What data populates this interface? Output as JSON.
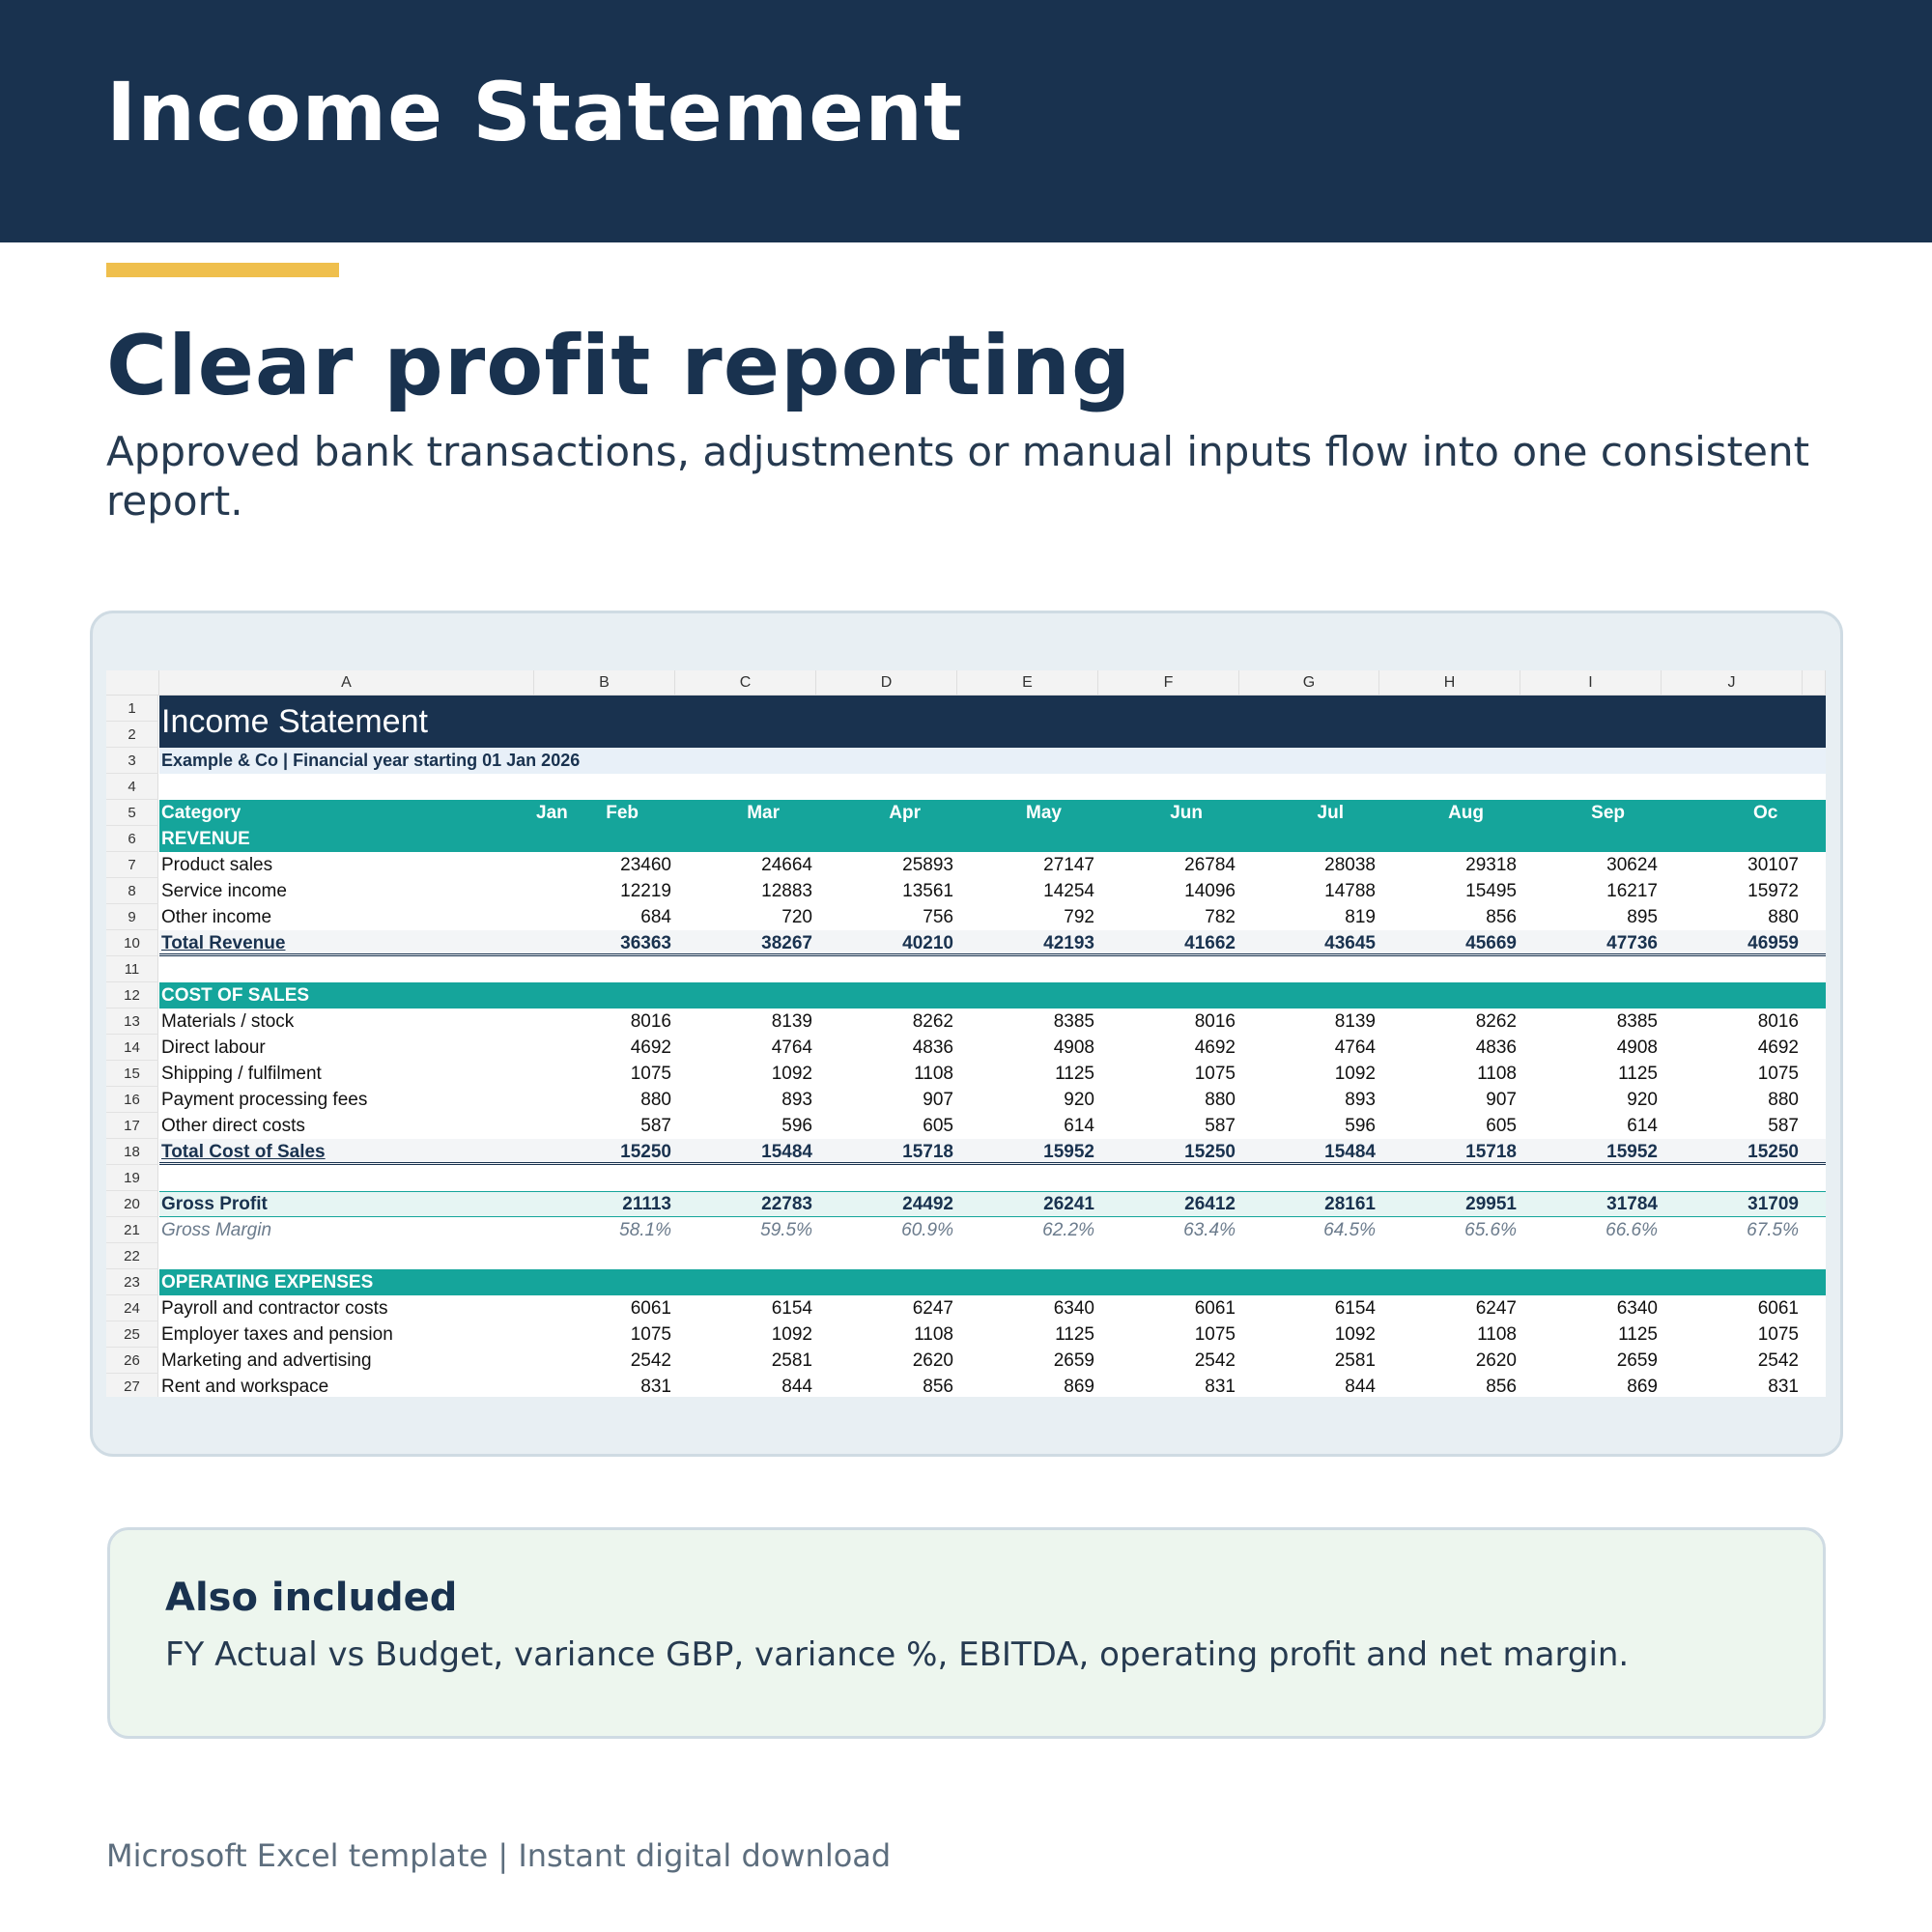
{
  "hero": {
    "title": "Income Statement"
  },
  "headline": "Clear profit reporting",
  "subhead": "Approved bank transactions, adjustments or manual inputs flow into one consistent report.",
  "colors": {
    "navy": "#19324f",
    "accent": "#efbf4d",
    "teal": "#15a59b"
  },
  "sheet": {
    "columns": [
      "A",
      "B",
      "C",
      "D",
      "E",
      "F",
      "G",
      "H",
      "I",
      "J"
    ],
    "row_numbers": [
      "1",
      "2",
      "3",
      "4",
      "5",
      "6",
      "7",
      "8",
      "9",
      "10",
      "11",
      "12",
      "13",
      "14",
      "15",
      "16",
      "17",
      "18",
      "19",
      "20",
      "21",
      "22",
      "23",
      "24",
      "25",
      "26",
      "27"
    ],
    "title": "Income Statement",
    "subtitle": "Example & Co | Financial year starting 01 Jan 2026",
    "header": {
      "category": "Category",
      "months": [
        "Jan",
        "Feb",
        "Mar",
        "Apr",
        "May",
        "Jun",
        "Jul",
        "Aug",
        "Sep",
        "Oc"
      ]
    },
    "sections": {
      "revenue": "REVENUE",
      "cost_of_sales": "COST OF SALES",
      "operating_expenses": "OPERATING EXPENSES"
    },
    "rows": [
      {
        "label": "Product sales",
        "values": [
          "23460",
          "24664",
          "25893",
          "27147",
          "26784",
          "28038",
          "29318",
          "30624",
          "30107"
        ]
      },
      {
        "label": "Service income",
        "values": [
          "12219",
          "12883",
          "13561",
          "14254",
          "14096",
          "14788",
          "15495",
          "16217",
          "15972"
        ]
      },
      {
        "label": "Other income",
        "values": [
          "684",
          "720",
          "756",
          "792",
          "782",
          "819",
          "856",
          "895",
          "880"
        ]
      },
      {
        "label": "Total Revenue",
        "values": [
          "36363",
          "38267",
          "40210",
          "42193",
          "41662",
          "43645",
          "45669",
          "47736",
          "46959"
        ]
      },
      {
        "label": "Materials / stock",
        "values": [
          "8016",
          "8139",
          "8262",
          "8385",
          "8016",
          "8139",
          "8262",
          "8385",
          "8016"
        ]
      },
      {
        "label": "Direct labour",
        "values": [
          "4692",
          "4764",
          "4836",
          "4908",
          "4692",
          "4764",
          "4836",
          "4908",
          "4692"
        ]
      },
      {
        "label": "Shipping / fulfilment",
        "values": [
          "1075",
          "1092",
          "1108",
          "1125",
          "1075",
          "1092",
          "1108",
          "1125",
          "1075"
        ]
      },
      {
        "label": "Payment processing fees",
        "values": [
          "880",
          "893",
          "907",
          "920",
          "880",
          "893",
          "907",
          "920",
          "880"
        ]
      },
      {
        "label": "Other direct costs",
        "values": [
          "587",
          "596",
          "605",
          "614",
          "587",
          "596",
          "605",
          "614",
          "587"
        ]
      },
      {
        "label": "Total Cost of Sales",
        "values": [
          "15250",
          "15484",
          "15718",
          "15952",
          "15250",
          "15484",
          "15718",
          "15952",
          "15250"
        ]
      },
      {
        "label": "Gross Profit",
        "values": [
          "21113",
          "22783",
          "24492",
          "26241",
          "26412",
          "28161",
          "29951",
          "31784",
          "31709"
        ]
      },
      {
        "label": "Gross Margin",
        "values": [
          "58.1%",
          "59.5%",
          "60.9%",
          "62.2%",
          "63.4%",
          "64.5%",
          "65.6%",
          "66.6%",
          "67.5%"
        ]
      },
      {
        "label": "Payroll and contractor costs",
        "values": [
          "6061",
          "6154",
          "6247",
          "6340",
          "6061",
          "6154",
          "6247",
          "6340",
          "6061"
        ]
      },
      {
        "label": "Employer taxes and pension",
        "values": [
          "1075",
          "1092",
          "1108",
          "1125",
          "1075",
          "1092",
          "1108",
          "1125",
          "1075"
        ]
      },
      {
        "label": "Marketing and advertising",
        "values": [
          "2542",
          "2581",
          "2620",
          "2659",
          "2542",
          "2581",
          "2620",
          "2659",
          "2542"
        ]
      },
      {
        "label": "Rent and workspace",
        "values": [
          "831",
          "844",
          "856",
          "869",
          "831",
          "844",
          "856",
          "869",
          "831"
        ]
      }
    ]
  },
  "included": {
    "title": "Also included",
    "text": "FY Actual vs Budget, variance GBP, variance %, EBITDA, operating profit and net margin."
  },
  "footer": {
    "text": "Microsoft Excel template  |  Instant digital download"
  }
}
